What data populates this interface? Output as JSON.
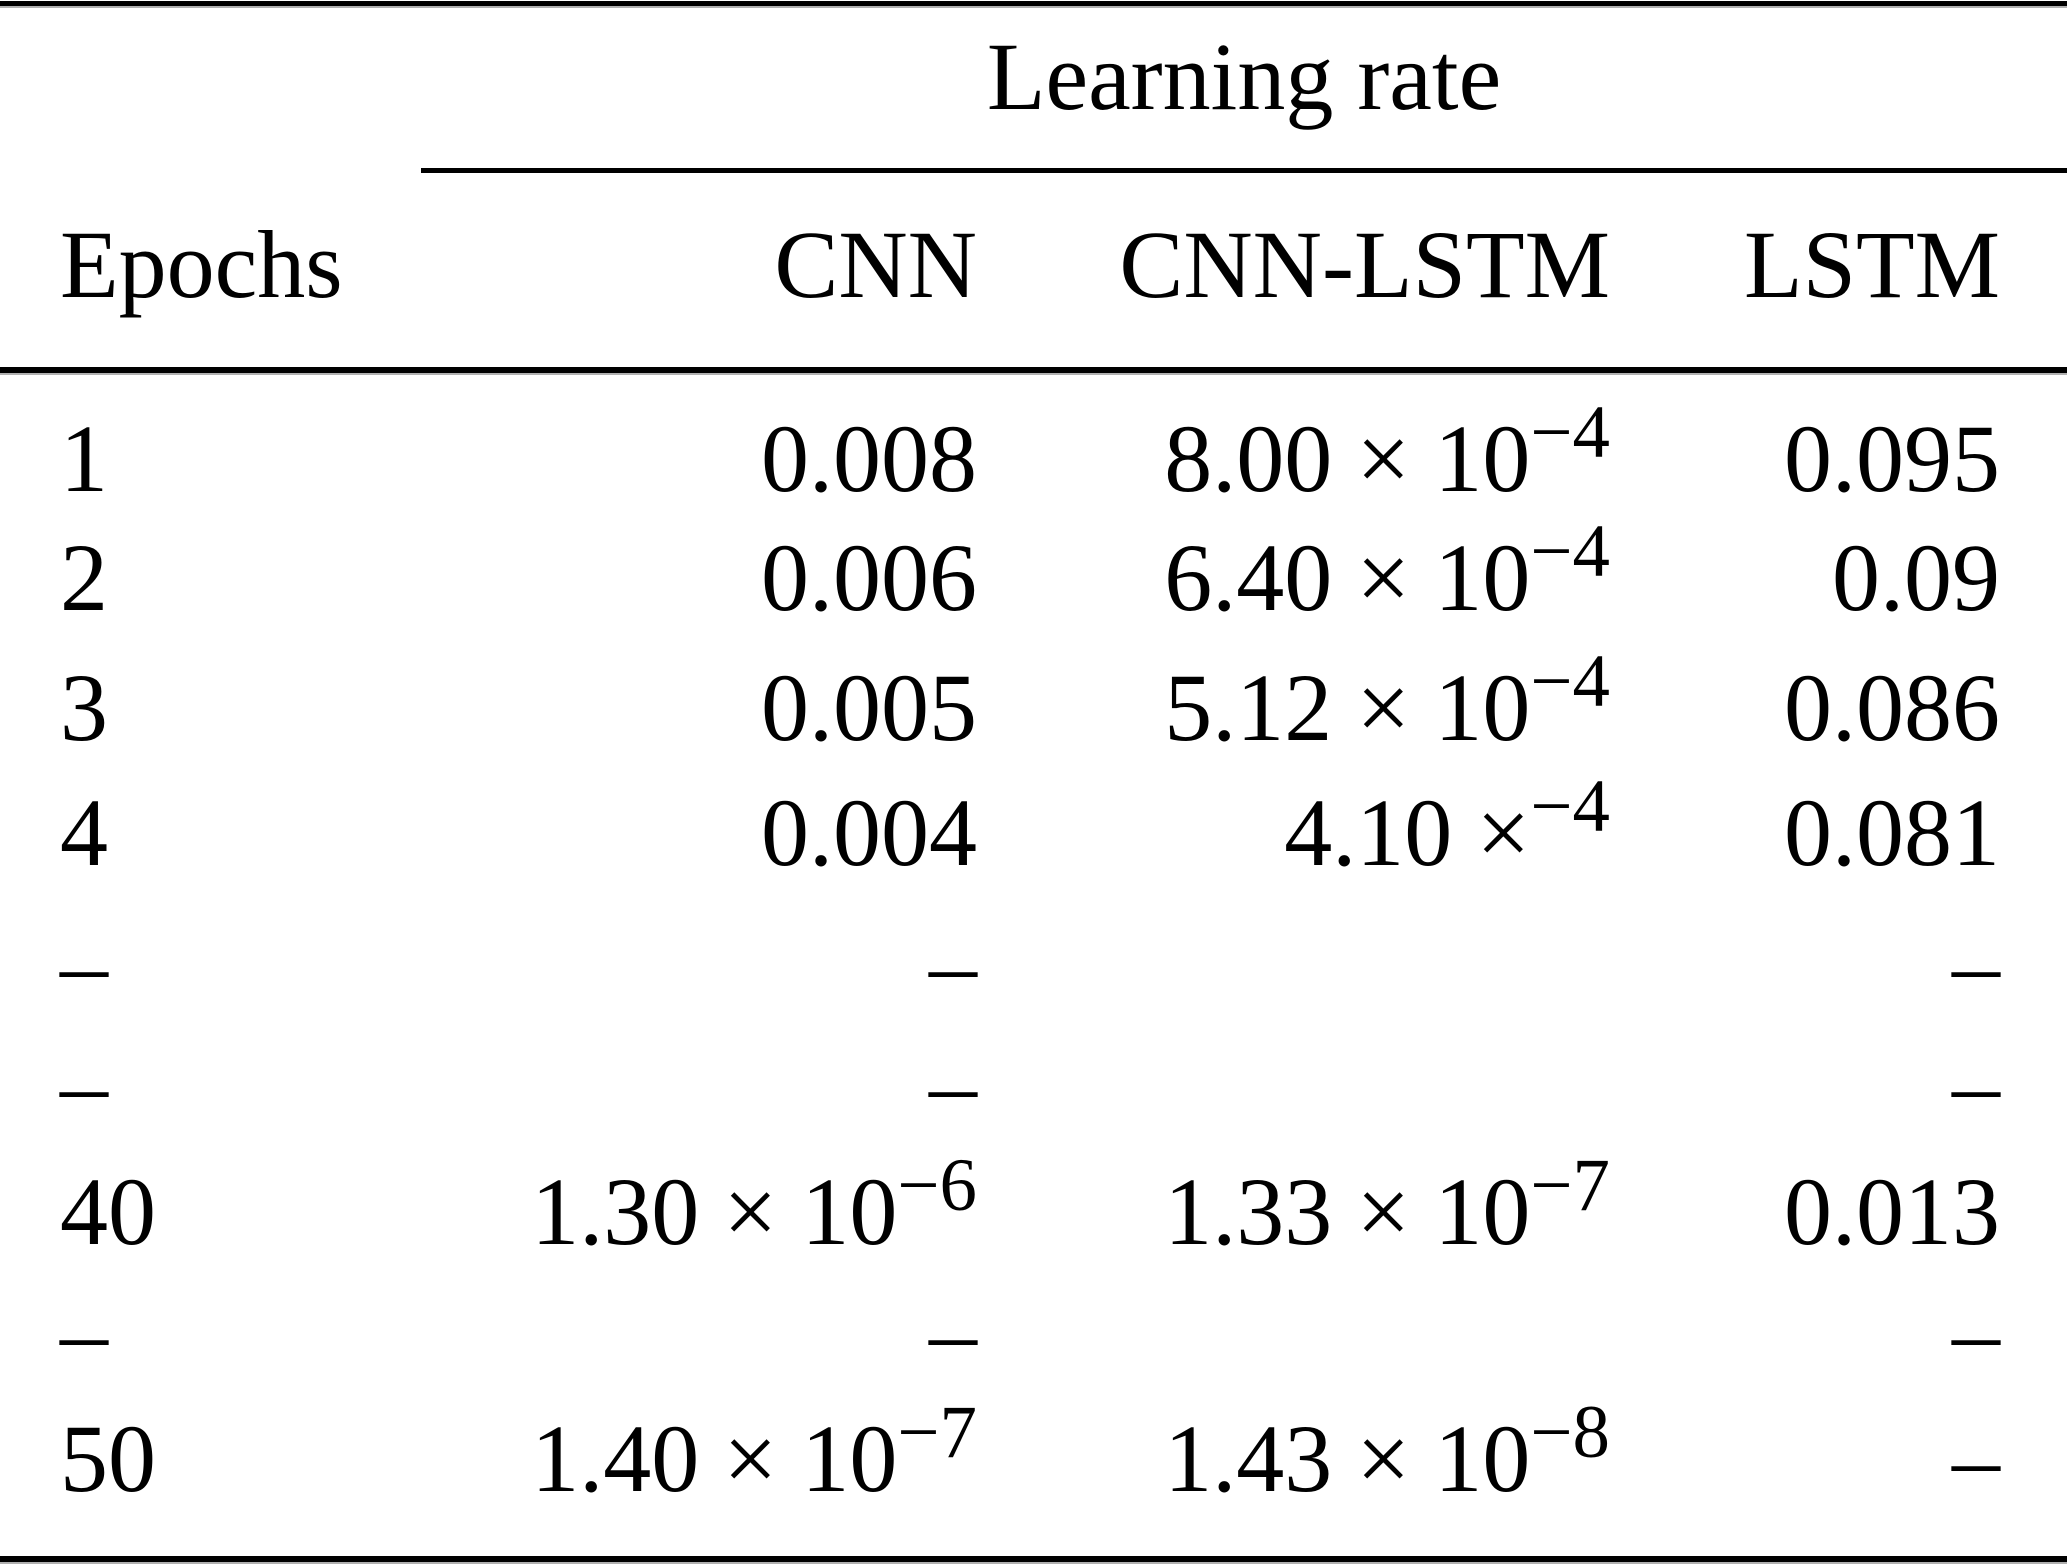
{
  "table": {
    "title": "Learning rate",
    "background": "#ffffff",
    "text_color": "#000000",
    "columns": [
      {
        "label": "Epochs"
      },
      {
        "label": "CNN"
      },
      {
        "label": "CNN-LSTM"
      },
      {
        "label": "LSTM"
      }
    ],
    "rows": [
      {
        "cells": [
          {
            "base": "1"
          },
          {
            "base": "0.008"
          },
          {
            "base": "8.00 × 10",
            "sup": "−4"
          },
          {
            "base": "0.095"
          }
        ]
      },
      {
        "cells": [
          {
            "base": "2"
          },
          {
            "base": "0.006"
          },
          {
            "base": "6.40 × 10",
            "sup": "−4"
          },
          {
            "base": "0.09"
          }
        ]
      },
      {
        "cells": [
          {
            "base": "3"
          },
          {
            "base": "0.005"
          },
          {
            "base": "5.12 × 10",
            "sup": "−4"
          },
          {
            "base": "0.086"
          }
        ]
      },
      {
        "cells": [
          {
            "base": "4"
          },
          {
            "base": "0.004"
          },
          {
            "base": "4.10 ×",
            "sup": "−4"
          },
          {
            "base": "0.081"
          }
        ]
      },
      {
        "cells": [
          {
            "base": "–"
          },
          {
            "base": "–"
          },
          {},
          {
            "base": "–"
          }
        ]
      },
      {
        "cells": [
          {
            "base": "–"
          },
          {
            "base": "–"
          },
          {},
          {
            "base": "–"
          }
        ]
      },
      {
        "cells": [
          {
            "base": "40"
          },
          {
            "base": "1.30 × 10",
            "sup": "−6"
          },
          {
            "base": "1.33 × 10",
            "sup": "−7"
          },
          {
            "base": "0.013"
          }
        ]
      },
      {
        "cells": [
          {
            "base": "–"
          },
          {
            "base": "–"
          },
          {},
          {
            "base": "–"
          }
        ]
      },
      {
        "cells": [
          {
            "base": "50"
          },
          {
            "base": "1.40 × 10",
            "sup": "−7"
          },
          {
            "base": "1.43 × 10",
            "sup": "−8"
          },
          {
            "base": "–"
          }
        ]
      }
    ]
  }
}
